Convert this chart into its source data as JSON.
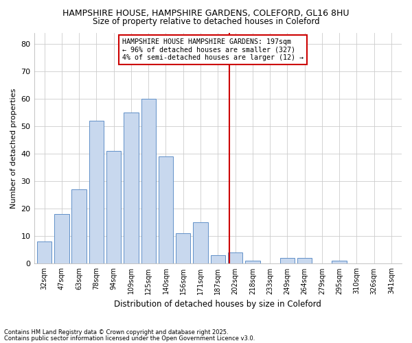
{
  "title1": "HAMPSHIRE HOUSE, HAMPSHIRE GARDENS, COLEFORD, GL16 8HU",
  "title2": "Size of property relative to detached houses in Coleford",
  "xlabel": "Distribution of detached houses by size in Coleford",
  "ylabel": "Number of detached properties",
  "categories": [
    "32sqm",
    "47sqm",
    "63sqm",
    "78sqm",
    "94sqm",
    "109sqm",
    "125sqm",
    "140sqm",
    "156sqm",
    "171sqm",
    "187sqm",
    "202sqm",
    "218sqm",
    "233sqm",
    "249sqm",
    "264sqm",
    "279sqm",
    "295sqm",
    "310sqm",
    "326sqm",
    "341sqm"
  ],
  "values": [
    8,
    18,
    27,
    52,
    41,
    55,
    60,
    39,
    11,
    15,
    3,
    4,
    1,
    0,
    2,
    2,
    0,
    1,
    0,
    0,
    0
  ],
  "bar_color": "#c8d8ee",
  "bar_edge_color": "#6090c8",
  "vline_color": "#cc0000",
  "annotation_text": "HAMPSHIRE HOUSE HAMPSHIRE GARDENS: 197sqm\n← 96% of detached houses are smaller (327)\n4% of semi-detached houses are larger (12) →",
  "annotation_box_color": "#ffffff",
  "annotation_box_edge": "#cc0000",
  "ylim": [
    0,
    84
  ],
  "yticks": [
    0,
    10,
    20,
    30,
    40,
    50,
    60,
    70,
    80
  ],
  "grid_color": "#cccccc",
  "bg_color": "#ffffff",
  "footnote1": "Contains HM Land Registry data © Crown copyright and database right 2025.",
  "footnote2": "Contains public sector information licensed under the Open Government Licence v3.0."
}
